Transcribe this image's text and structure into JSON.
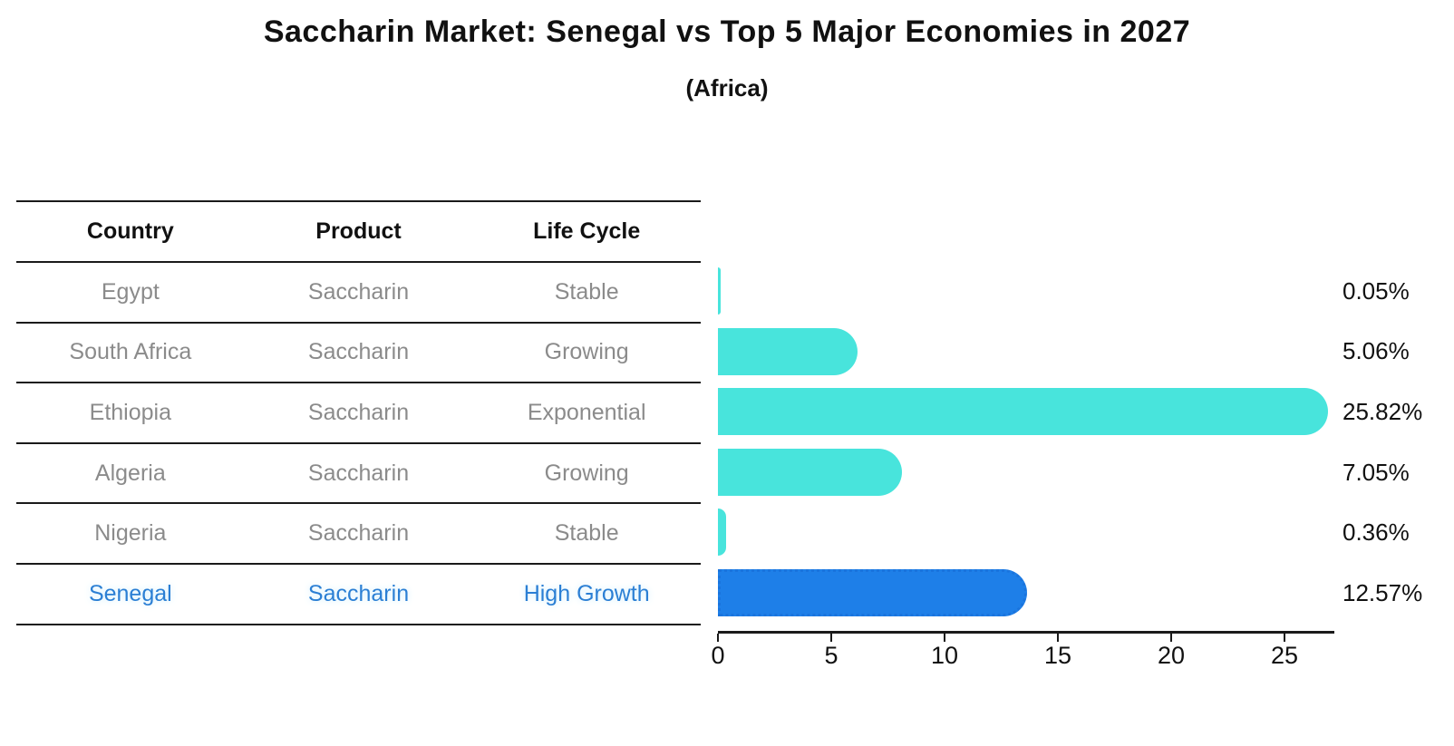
{
  "title": "Saccharin Market: Senegal vs Top 5 Major Economies in 2027",
  "subtitle": "(Africa)",
  "table": {
    "headers": [
      "Country",
      "Product",
      "Life Cycle"
    ],
    "rows": [
      {
        "country": "Egypt",
        "product": "Saccharin",
        "life_cycle": "Stable",
        "highlight": false
      },
      {
        "country": "South Africa",
        "product": "Saccharin",
        "life_cycle": "Growing",
        "highlight": false
      },
      {
        "country": "Ethiopia",
        "product": "Saccharin",
        "life_cycle": "Exponential",
        "highlight": false
      },
      {
        "country": "Algeria",
        "product": "Saccharin",
        "life_cycle": "Growing",
        "highlight": false
      },
      {
        "country": "Nigeria",
        "product": "Saccharin",
        "life_cycle": "Stable",
        "highlight": false
      },
      {
        "country": "Senegal",
        "product": "Saccharin",
        "life_cycle": "High Growth",
        "highlight": true
      }
    ]
  },
  "chart_data": {
    "type": "bar",
    "orientation": "horizontal",
    "title": "Saccharin Market: Senegal vs Top 5 Major Economies in 2027",
    "subtitle": "(Africa)",
    "categories": [
      "Egypt",
      "South Africa",
      "Ethiopia",
      "Algeria",
      "Nigeria",
      "Senegal"
    ],
    "values": [
      0.05,
      5.06,
      25.82,
      7.05,
      0.36,
      12.57
    ],
    "value_labels": [
      "0.05%",
      "5.06%",
      "25.82%",
      "7.05%",
      "0.36%",
      "12.57%"
    ],
    "x_ticks": [
      0,
      5,
      10,
      15,
      20,
      25
    ],
    "xlim": [
      0,
      27.2
    ],
    "grid": false,
    "legend": false,
    "highlight_index": 5
  },
  "colors": {
    "bar": "#48e4dc",
    "highlight_bar": "#1e7fe8",
    "highlight_bar_border": "#1a74dd",
    "muted_text": "#8b8b8b",
    "dark_text": "#111111",
    "highlight_text": "#2b7fd4"
  }
}
